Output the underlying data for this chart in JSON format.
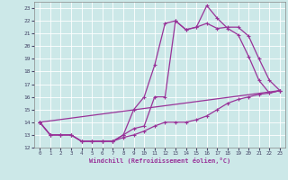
{
  "xlabel": "Windchill (Refroidissement éolien,°C)",
  "bg_color": "#cce8e8",
  "line_color": "#993399",
  "grid_color": "#ffffff",
  "tick_color": "#444466",
  "xlim": [
    -0.5,
    23.5
  ],
  "ylim": [
    12,
    23.5
  ],
  "yticks": [
    12,
    13,
    14,
    15,
    16,
    17,
    18,
    19,
    20,
    21,
    22,
    23
  ],
  "xticks": [
    0,
    1,
    2,
    3,
    4,
    5,
    6,
    7,
    8,
    9,
    10,
    11,
    12,
    13,
    14,
    15,
    16,
    17,
    18,
    19,
    20,
    21,
    22,
    23
  ],
  "line1_x": [
    0,
    1,
    2,
    3,
    4,
    5,
    6,
    7,
    8,
    9,
    10,
    11,
    12,
    13,
    14,
    15,
    16,
    17,
    18,
    19,
    20,
    21,
    22,
    23
  ],
  "line1_y": [
    14,
    13,
    13,
    13,
    12.5,
    12.5,
    12.5,
    12.5,
    13,
    15,
    16,
    18.5,
    21.8,
    22.0,
    21.3,
    21.5,
    23.2,
    22.2,
    21.4,
    20.9,
    19.2,
    17.3,
    16.3,
    16.5
  ],
  "line2_x": [
    0,
    1,
    2,
    3,
    4,
    5,
    6,
    7,
    8,
    9,
    10,
    11,
    12,
    13,
    14,
    15,
    16,
    17,
    18,
    19,
    20,
    21,
    22,
    23
  ],
  "line2_y": [
    14,
    13,
    13,
    13,
    12.5,
    12.5,
    12.5,
    12.5,
    13,
    13.5,
    13.7,
    16.0,
    16.0,
    22.0,
    21.3,
    21.5,
    21.8,
    21.4,
    21.5,
    21.5,
    20.8,
    19.0,
    17.3,
    16.5
  ],
  "line3_x": [
    0,
    1,
    2,
    3,
    4,
    5,
    6,
    7,
    8,
    9,
    10,
    11,
    12,
    13,
    14,
    15,
    16,
    17,
    18,
    19,
    20,
    21,
    22,
    23
  ],
  "line3_y": [
    14,
    13,
    13,
    13,
    12.5,
    12.5,
    12.5,
    12.5,
    12.8,
    13.0,
    13.3,
    13.7,
    14.0,
    14.0,
    14.0,
    14.2,
    14.5,
    15.0,
    15.5,
    15.8,
    16.0,
    16.2,
    16.3,
    16.5
  ],
  "line4_x": [
    0,
    23
  ],
  "line4_y": [
    14,
    16.5
  ]
}
